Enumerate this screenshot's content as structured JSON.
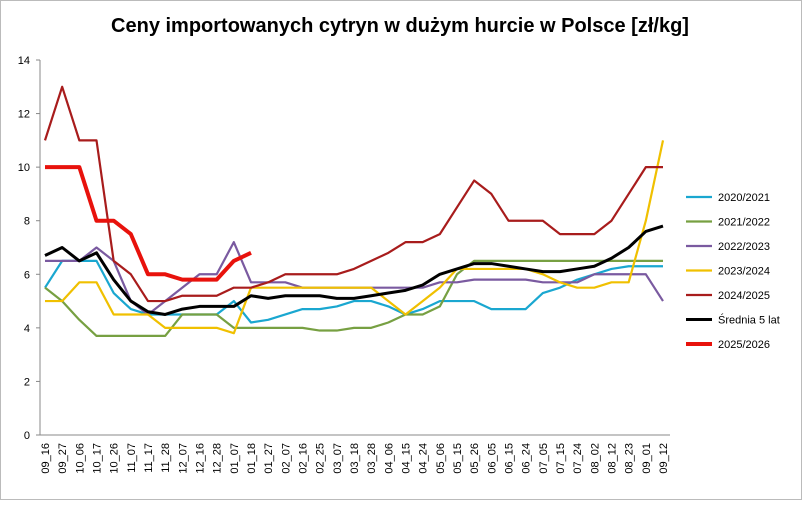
{
  "chart_data": {
    "type": "line",
    "title": "Ceny importowanych cytryn w dużym hurcie w Polsce [zł/kg]",
    "categories": [
      "09_16",
      "09_27",
      "10_06",
      "10_17",
      "10_26",
      "11_07",
      "11_17",
      "11_28",
      "12_07",
      "12_16",
      "12_28",
      "01_07",
      "01_18",
      "01_27",
      "02_07",
      "02_16",
      "02_25",
      "03_07",
      "03_18",
      "03_28",
      "04_06",
      "04_15",
      "04_24",
      "05_06",
      "05_15",
      "05_26",
      "06_05",
      "06_15",
      "06_24",
      "07_05",
      "07_15",
      "07_24",
      "08_02",
      "08_12",
      "08_23",
      "09_01",
      "09_12"
    ],
    "series": [
      {
        "name": "2020/2021",
        "color": "#1aa7d0",
        "values": [
          5.5,
          6.5,
          6.5,
          6.5,
          5.3,
          4.7,
          4.5,
          4.5,
          4.5,
          4.5,
          4.5,
          5.0,
          4.2,
          4.3,
          4.5,
          4.7,
          4.7,
          4.8,
          5.0,
          5.0,
          4.8,
          4.5,
          4.7,
          5.0,
          5.0,
          5.0,
          4.7,
          4.7,
          4.7,
          5.3,
          5.5,
          5.8,
          6.0,
          6.2,
          6.3,
          6.3,
          6.3
        ]
      },
      {
        "name": "2021/2022",
        "color": "#77a042",
        "values": [
          5.5,
          5.0,
          4.3,
          3.7,
          3.7,
          3.7,
          3.7,
          3.7,
          4.5,
          4.5,
          4.5,
          4.0,
          4.0,
          4.0,
          4.0,
          4.0,
          3.9,
          3.9,
          4.0,
          4.0,
          4.2,
          4.5,
          4.5,
          4.8,
          6.0,
          6.5,
          6.5,
          6.5,
          6.5,
          6.5,
          6.5,
          6.5,
          6.5,
          6.5,
          6.5,
          6.5,
          6.5
        ]
      },
      {
        "name": "2022/2023",
        "color": "#7a5aa0",
        "values": [
          6.5,
          6.5,
          6.5,
          7.0,
          6.5,
          5.0,
          4.5,
          5.0,
          5.5,
          6.0,
          6.0,
          7.2,
          5.7,
          5.7,
          5.7,
          5.5,
          5.5,
          5.5,
          5.5,
          5.5,
          5.5,
          5.5,
          5.5,
          5.7,
          5.7,
          5.8,
          5.8,
          5.8,
          5.8,
          5.7,
          5.7,
          5.7,
          6.0,
          6.0,
          6.0,
          6.0,
          5.0
        ]
      },
      {
        "name": "2023/2024",
        "color": "#f0c000",
        "values": [
          5.0,
          5.0,
          5.7,
          5.7,
          4.5,
          4.5,
          4.5,
          4.0,
          4.0,
          4.0,
          4.0,
          3.8,
          5.5,
          5.5,
          5.5,
          5.5,
          5.5,
          5.5,
          5.5,
          5.5,
          5.0,
          4.5,
          5.0,
          5.5,
          6.2,
          6.2,
          6.2,
          6.2,
          6.2,
          6.0,
          5.7,
          5.5,
          5.5,
          5.7,
          5.7,
          8.0,
          11.0
        ]
      },
      {
        "name": "2024/2025",
        "color": "#a81c1c",
        "values": [
          11.0,
          13.0,
          11.0,
          11.0,
          6.5,
          6.0,
          5.0,
          5.0,
          5.2,
          5.2,
          5.2,
          5.5,
          5.5,
          5.7,
          6.0,
          6.0,
          6.0,
          6.0,
          6.2,
          6.5,
          6.8,
          7.2,
          7.2,
          7.5,
          8.5,
          9.5,
          9.0,
          8.0,
          8.0,
          8.0,
          7.5,
          7.5,
          7.5,
          8.0,
          9.0,
          10.0,
          10.0
        ]
      },
      {
        "name": "Średnia 5 lat",
        "color": "#000000",
        "values": [
          6.7,
          7.0,
          6.5,
          6.8,
          5.8,
          5.0,
          4.6,
          4.5,
          4.7,
          4.8,
          4.8,
          4.8,
          5.2,
          5.1,
          5.2,
          5.2,
          5.2,
          5.1,
          5.1,
          5.2,
          5.3,
          5.4,
          5.6,
          6.0,
          6.2,
          6.4,
          6.4,
          6.3,
          6.2,
          6.1,
          6.1,
          6.2,
          6.3,
          6.6,
          7.0,
          7.6,
          7.8
        ]
      },
      {
        "name": "2025/2026",
        "color": "#e8120c",
        "values": [
          10.0,
          10.0,
          10.0,
          8.0,
          8.0,
          7.5,
          6.0,
          6.0,
          5.8,
          5.8,
          5.8,
          6.5,
          6.8,
          null,
          null,
          null,
          null,
          null,
          null,
          null,
          null,
          null,
          null,
          null,
          null,
          null,
          null,
          null,
          null,
          null,
          null,
          null,
          null,
          null,
          null,
          null,
          null
        ]
      }
    ],
    "ylim": [
      0,
      14
    ],
    "yticks": [
      0,
      2,
      4,
      6,
      8,
      10,
      12,
      14
    ],
    "legend": "right"
  }
}
